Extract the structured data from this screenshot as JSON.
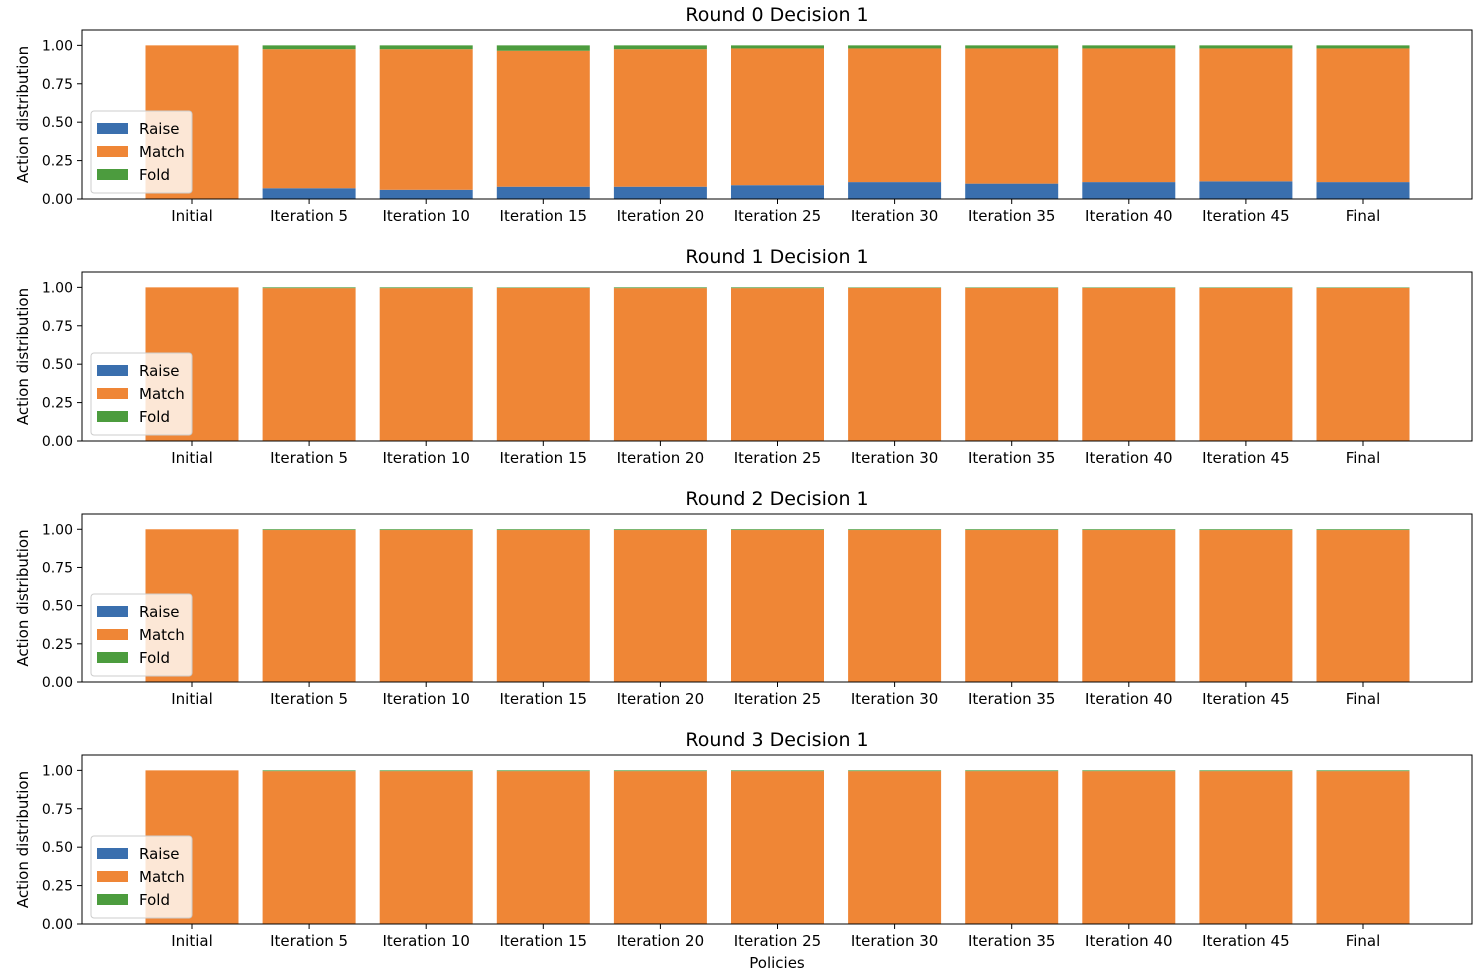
{
  "figure": {
    "xlabel": "Policies"
  },
  "legend_labels": [
    "Raise",
    "Match",
    "Fold"
  ],
  "colors": {
    "Raise": "#3a6fae",
    "Match": "#ef8636",
    "Fold": "#4c9c3e"
  },
  "chart_data": [
    {
      "type": "bar",
      "stacked": true,
      "title": "Round 0 Decision 1",
      "xlabel": "",
      "ylabel": "Action distribution",
      "ylim": [
        0,
        1.1
      ],
      "yticks": [
        "0.00",
        "0.25",
        "0.50",
        "0.75",
        "1.00"
      ],
      "legend": "lower-left",
      "grid": false,
      "categories": [
        "Initial",
        "Iteration 5",
        "Iteration 10",
        "Iteration 15",
        "Iteration 20",
        "Iteration 25",
        "Iteration 30",
        "Iteration 35",
        "Iteration 40",
        "Iteration 45",
        "Final"
      ],
      "series": [
        {
          "name": "Raise",
          "values": [
            0.0,
            0.07,
            0.06,
            0.08,
            0.08,
            0.09,
            0.11,
            0.1,
            0.11,
            0.115,
            0.11
          ]
        },
        {
          "name": "Match",
          "values": [
            1.0,
            0.905,
            0.915,
            0.885,
            0.895,
            0.89,
            0.87,
            0.88,
            0.87,
            0.865,
            0.87
          ]
        },
        {
          "name": "Fold",
          "values": [
            0.0,
            0.025,
            0.025,
            0.035,
            0.025,
            0.02,
            0.02,
            0.02,
            0.02,
            0.02,
            0.02
          ]
        }
      ]
    },
    {
      "type": "bar",
      "stacked": true,
      "title": "Round 1 Decision 1",
      "xlabel": "",
      "ylabel": "Action distribution",
      "ylim": [
        0,
        1.1
      ],
      "yticks": [
        "0.00",
        "0.25",
        "0.50",
        "0.75",
        "1.00"
      ],
      "legend": "lower-left",
      "grid": false,
      "categories": [
        "Initial",
        "Iteration 5",
        "Iteration 10",
        "Iteration 15",
        "Iteration 20",
        "Iteration 25",
        "Iteration 30",
        "Iteration 35",
        "Iteration 40",
        "Iteration 45",
        "Final"
      ],
      "series": [
        {
          "name": "Raise",
          "values": [
            0.0,
            0.002,
            0.002,
            0.002,
            0.002,
            0.002,
            0.002,
            0.002,
            0.002,
            0.002,
            0.002
          ]
        },
        {
          "name": "Match",
          "values": [
            1.0,
            0.993,
            0.993,
            0.995,
            0.993,
            0.993,
            0.995,
            0.995,
            0.995,
            0.995,
            0.995
          ]
        },
        {
          "name": "Fold",
          "values": [
            0.0,
            0.005,
            0.005,
            0.003,
            0.005,
            0.005,
            0.003,
            0.003,
            0.003,
            0.003,
            0.003
          ]
        }
      ]
    },
    {
      "type": "bar",
      "stacked": true,
      "title": "Round 2 Decision 1",
      "xlabel": "",
      "ylabel": "Action distribution",
      "ylim": [
        0,
        1.1
      ],
      "yticks": [
        "0.00",
        "0.25",
        "0.50",
        "0.75",
        "1.00"
      ],
      "legend": "lower-left",
      "grid": false,
      "categories": [
        "Initial",
        "Iteration 5",
        "Iteration 10",
        "Iteration 15",
        "Iteration 20",
        "Iteration 25",
        "Iteration 30",
        "Iteration 35",
        "Iteration 40",
        "Iteration 45",
        "Final"
      ],
      "series": [
        {
          "name": "Raise",
          "values": [
            0.0,
            0.002,
            0.002,
            0.002,
            0.002,
            0.002,
            0.002,
            0.002,
            0.002,
            0.002,
            0.002
          ]
        },
        {
          "name": "Match",
          "values": [
            1.0,
            0.993,
            0.993,
            0.993,
            0.993,
            0.993,
            0.993,
            0.993,
            0.993,
            0.993,
            0.993
          ]
        },
        {
          "name": "Fold",
          "values": [
            0.0,
            0.005,
            0.005,
            0.005,
            0.005,
            0.005,
            0.005,
            0.005,
            0.005,
            0.005,
            0.005
          ]
        }
      ]
    },
    {
      "type": "bar",
      "stacked": true,
      "title": "Round 3 Decision 1",
      "xlabel": "Policies",
      "ylabel": "Action distribution",
      "ylim": [
        0,
        1.1
      ],
      "yticks": [
        "0.00",
        "0.25",
        "0.50",
        "0.75",
        "1.00"
      ],
      "legend": "lower-left",
      "grid": false,
      "categories": [
        "Initial",
        "Iteration 5",
        "Iteration 10",
        "Iteration 15",
        "Iteration 20",
        "Iteration 25",
        "Iteration 30",
        "Iteration 35",
        "Iteration 40",
        "Iteration 45",
        "Final"
      ],
      "series": [
        {
          "name": "Raise",
          "values": [
            0.0,
            0.002,
            0.002,
            0.002,
            0.002,
            0.002,
            0.002,
            0.002,
            0.002,
            0.002,
            0.002
          ]
        },
        {
          "name": "Match",
          "values": [
            1.0,
            0.993,
            0.993,
            0.993,
            0.993,
            0.993,
            0.993,
            0.993,
            0.993,
            0.993,
            0.993
          ]
        },
        {
          "name": "Fold",
          "values": [
            0.0,
            0.005,
            0.005,
            0.005,
            0.005,
            0.005,
            0.005,
            0.005,
            0.005,
            0.005,
            0.005
          ]
        }
      ]
    }
  ]
}
